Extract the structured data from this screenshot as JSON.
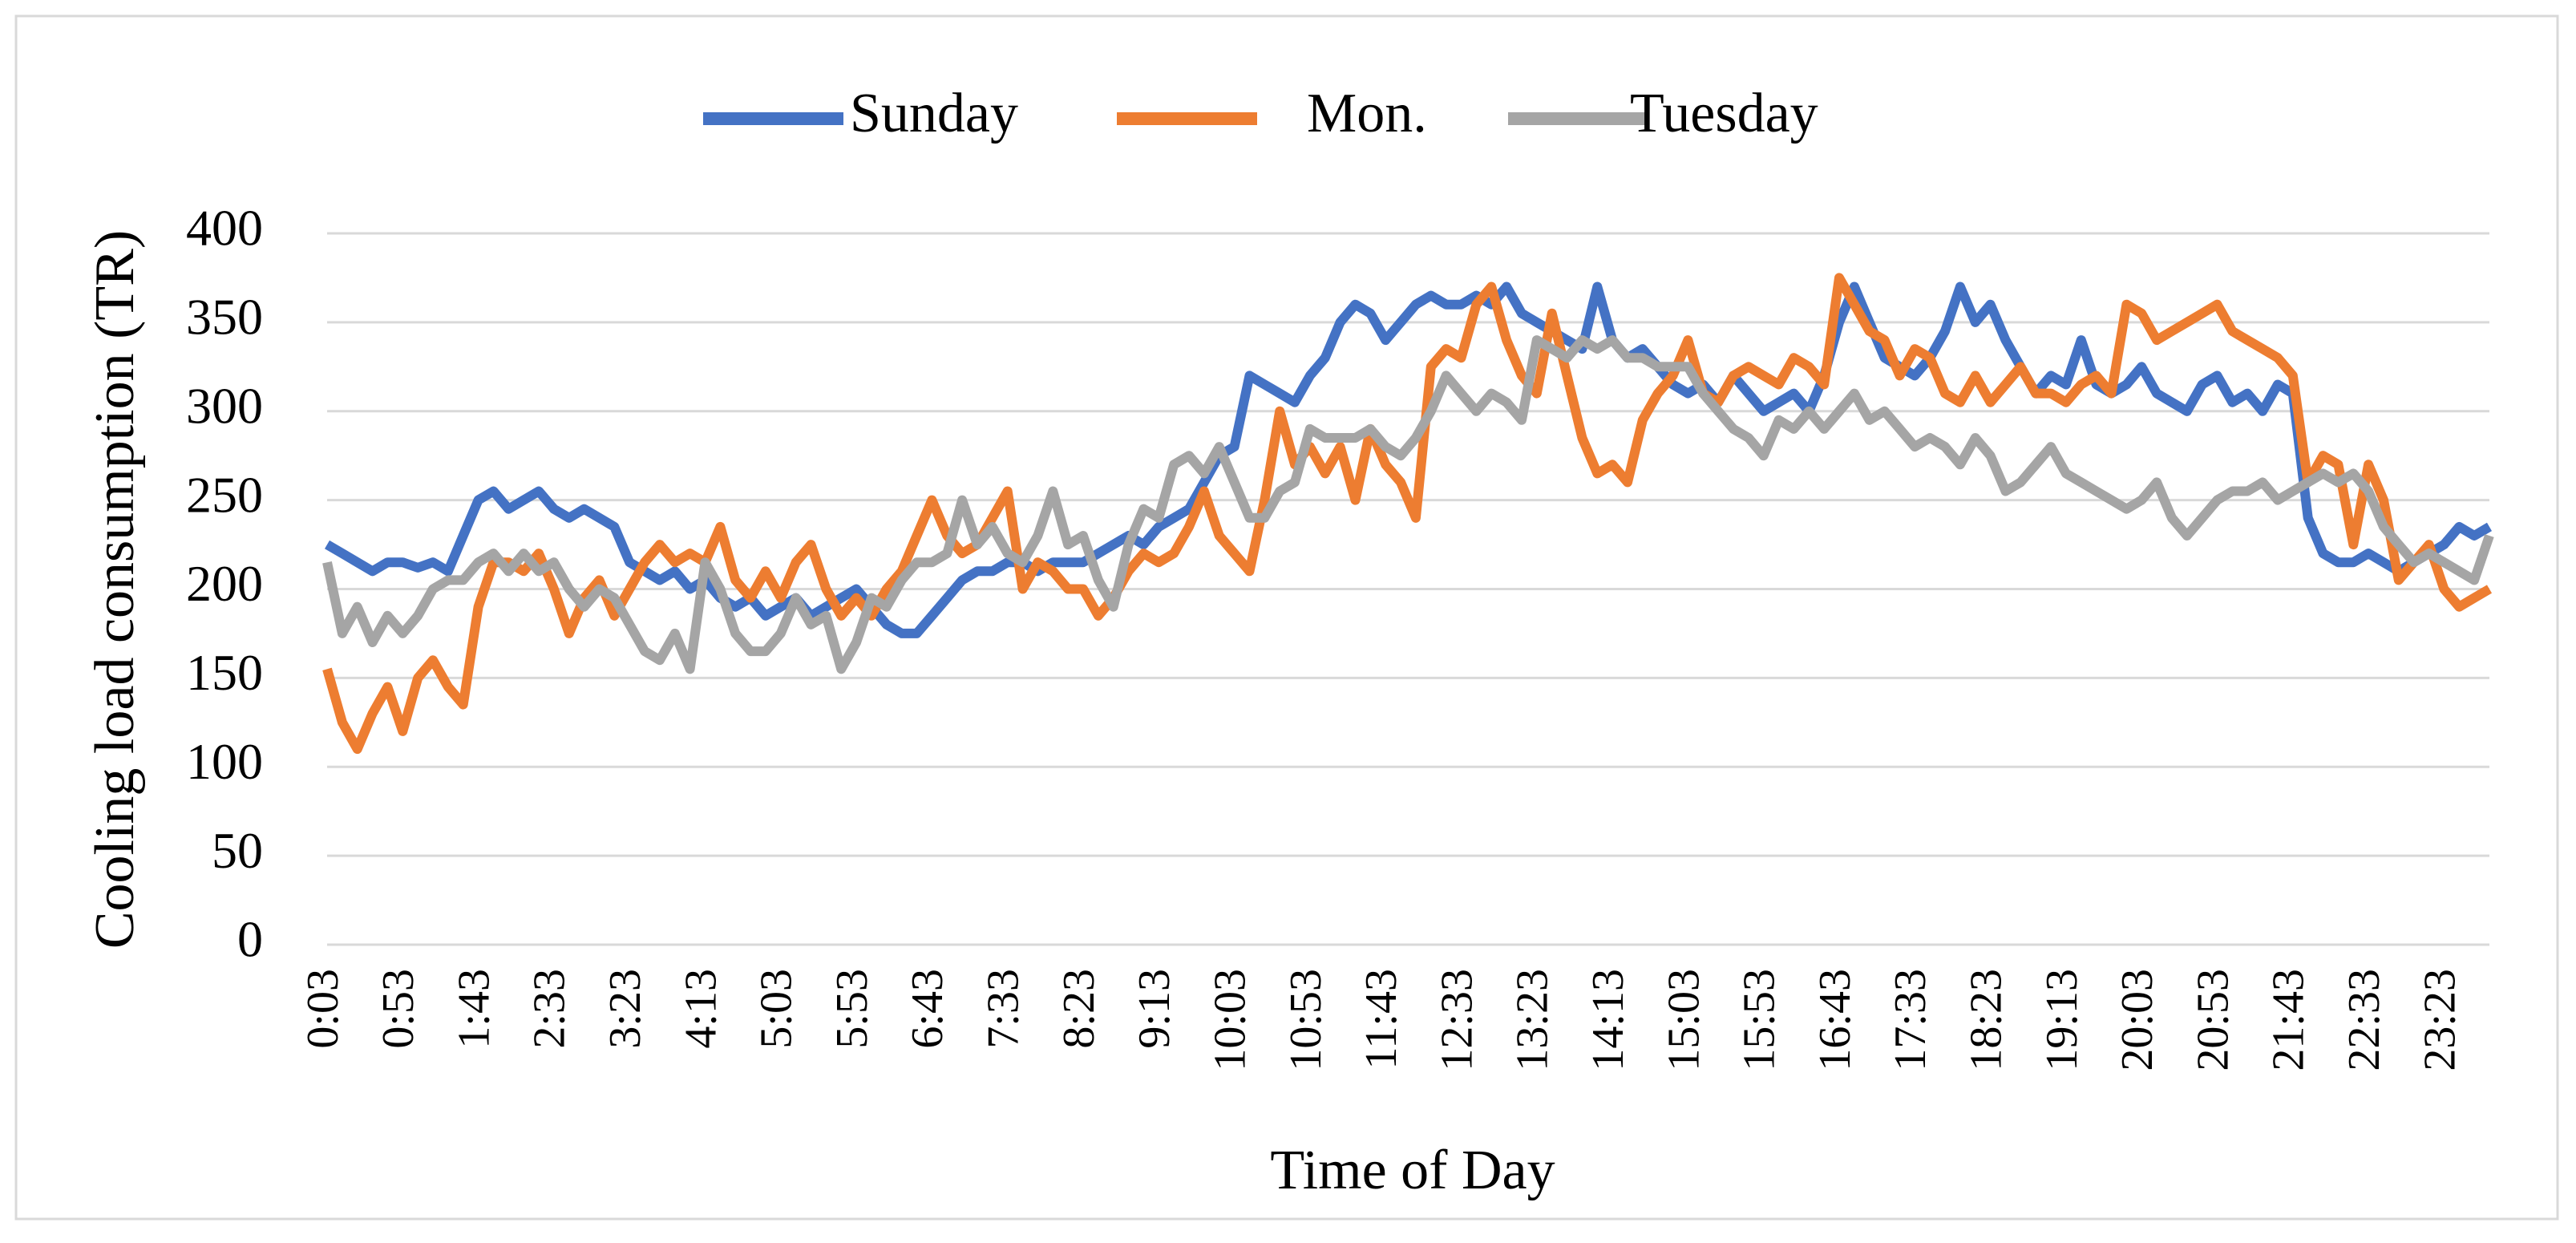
{
  "chart_data": {
    "type": "line",
    "x_label": "Time of Day",
    "y_label": "Cooling load consumption (TR)",
    "categories": [
      "0:03",
      null,
      null,
      null,
      null,
      "0:53",
      null,
      null,
      null,
      null,
      "1:43",
      null,
      null,
      null,
      null,
      "2:33",
      null,
      null,
      null,
      null,
      "3:23",
      null,
      null,
      null,
      null,
      "4:13",
      null,
      null,
      null,
      null,
      "5:03",
      null,
      null,
      null,
      null,
      "5:53",
      null,
      null,
      null,
      null,
      "6:43",
      null,
      null,
      null,
      null,
      "7:33",
      null,
      null,
      null,
      null,
      "8:23",
      null,
      null,
      null,
      null,
      "9:13",
      null,
      null,
      null,
      null,
      "10:03",
      null,
      null,
      null,
      null,
      "10:53",
      null,
      null,
      null,
      null,
      "11:43",
      null,
      null,
      null,
      null,
      "12:33",
      null,
      null,
      null,
      null,
      "13:23",
      null,
      null,
      null,
      null,
      "14:13",
      null,
      null,
      null,
      null,
      "15:03",
      null,
      null,
      null,
      null,
      "15:53",
      null,
      null,
      null,
      null,
      "16:43",
      null,
      null,
      null,
      null,
      "17:33",
      null,
      null,
      null,
      null,
      "18:23",
      null,
      null,
      null,
      null,
      "19:13",
      null,
      null,
      null,
      null,
      "20:03",
      null,
      null,
      null,
      null,
      "20:53",
      null,
      null,
      null,
      null,
      "21:43",
      null,
      null,
      null,
      null,
      "22:33",
      null,
      null,
      null,
      null,
      "23:23",
      null,
      null,
      null
    ],
    "series": [
      {
        "name": "Sunday",
        "color": "#4472c4",
        "values": [
          225,
          220,
          215,
          210,
          215,
          215,
          212,
          215,
          210,
          230,
          250,
          255,
          245,
          250,
          255,
          245,
          240,
          245,
          240,
          235,
          215,
          210,
          205,
          210,
          200,
          205,
          195,
          190,
          195,
          185,
          190,
          195,
          185,
          190,
          195,
          200,
          190,
          180,
          175,
          175,
          185,
          195,
          205,
          210,
          210,
          215,
          215,
          210,
          215,
          215,
          215,
          220,
          225,
          230,
          225,
          235,
          240,
          245,
          260,
          275,
          280,
          320,
          315,
          310,
          305,
          320,
          330,
          350,
          360,
          355,
          340,
          350,
          360,
          365,
          360,
          360,
          365,
          360,
          370,
          355,
          350,
          345,
          340,
          335,
          370,
          340,
          330,
          335,
          325,
          315,
          310,
          315,
          305,
          320,
          310,
          300,
          305,
          310,
          300,
          320,
          350,
          370,
          350,
          330,
          325,
          320,
          330,
          345,
          370,
          350,
          360,
          340,
          325,
          310,
          320,
          315,
          340,
          315,
          310,
          315,
          325,
          310,
          305,
          300,
          315,
          320,
          305,
          310,
          300,
          315,
          310,
          240,
          220,
          215,
          215,
          220,
          215,
          210,
          215,
          220,
          225,
          235,
          230,
          235
        ]
      },
      {
        "name": "Mon.",
        "color": "#ed7d31",
        "values": [
          155,
          125,
          110,
          130,
          145,
          120,
          150,
          160,
          145,
          135,
          190,
          215,
          215,
          210,
          220,
          200,
          175,
          195,
          205,
          185,
          200,
          215,
          225,
          215,
          220,
          215,
          235,
          205,
          195,
          210,
          195,
          215,
          225,
          200,
          185,
          195,
          185,
          200,
          210,
          230,
          250,
          230,
          220,
          225,
          240,
          255,
          200,
          215,
          210,
          200,
          200,
          185,
          195,
          210,
          220,
          215,
          220,
          235,
          255,
          230,
          220,
          210,
          250,
          300,
          270,
          280,
          265,
          280,
          250,
          290,
          270,
          260,
          240,
          325,
          335,
          330,
          360,
          370,
          340,
          320,
          310,
          355,
          320,
          285,
          265,
          270,
          260,
          295,
          310,
          320,
          340,
          310,
          305,
          320,
          325,
          320,
          315,
          330,
          325,
          315,
          375,
          360,
          345,
          340,
          320,
          335,
          330,
          310,
          305,
          320,
          305,
          315,
          325,
          310,
          310,
          305,
          315,
          320,
          310,
          360,
          355,
          340,
          345,
          350,
          355,
          360,
          345,
          340,
          335,
          330,
          320,
          260,
          275,
          270,
          225,
          270,
          250,
          205,
          215,
          225,
          200,
          190,
          195,
          200
        ]
      },
      {
        "name": "Tuesday",
        "color": "#a5a5a5",
        "values": [
          215,
          175,
          190,
          170,
          185,
          175,
          185,
          200,
          205,
          205,
          215,
          220,
          210,
          220,
          210,
          215,
          200,
          190,
          200,
          195,
          180,
          165,
          160,
          175,
          155,
          215,
          200,
          175,
          165,
          165,
          175,
          195,
          180,
          185,
          155,
          170,
          195,
          190,
          205,
          215,
          215,
          220,
          250,
          225,
          235,
          220,
          215,
          230,
          255,
          225,
          230,
          205,
          190,
          225,
          245,
          240,
          270,
          275,
          265,
          280,
          260,
          240,
          240,
          255,
          260,
          290,
          285,
          285,
          285,
          290,
          280,
          275,
          285,
          300,
          320,
          310,
          300,
          310,
          305,
          295,
          340,
          335,
          330,
          340,
          335,
          340,
          330,
          330,
          325,
          325,
          325,
          310,
          300,
          290,
          285,
          275,
          295,
          290,
          300,
          290,
          300,
          310,
          295,
          300,
          290,
          280,
          285,
          280,
          270,
          285,
          275,
          255,
          260,
          270,
          280,
          265,
          260,
          255,
          250,
          245,
          250,
          260,
          240,
          230,
          240,
          250,
          255,
          255,
          260,
          250,
          255,
          260,
          265,
          260,
          265,
          255,
          235,
          225,
          215,
          220,
          215,
          210,
          205,
          230
        ]
      }
    ],
    "ylim": [
      0,
      400
    ],
    "yticks": [
      0,
      50,
      100,
      150,
      200,
      250,
      300,
      350,
      400
    ],
    "grid": true,
    "legend": "top"
  }
}
